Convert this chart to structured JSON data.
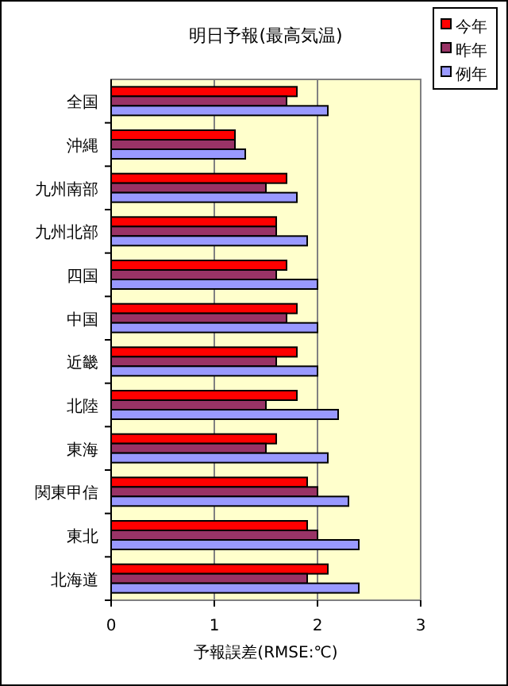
{
  "chart_data": {
    "type": "bar",
    "orientation": "horizontal",
    "title": "明日予報(最高気温)",
    "xlabel": "予報誤差(RMSE:℃)",
    "categories": [
      "全国",
      "沖縄",
      "九州南部",
      "九州北部",
      "四国",
      "中国",
      "近畿",
      "北陸",
      "東海",
      "関東甲信",
      "東北",
      "北海道"
    ],
    "series": [
      {
        "name": "今年",
        "color": "#ff0000",
        "values": [
          1.8,
          1.2,
          1.7,
          1.6,
          1.7,
          1.8,
          1.8,
          1.8,
          1.6,
          1.9,
          1.9,
          2.1
        ]
      },
      {
        "name": "昨年",
        "color": "#993366",
        "values": [
          1.7,
          1.2,
          1.5,
          1.6,
          1.6,
          1.7,
          1.6,
          1.5,
          1.5,
          2.0,
          2.0,
          1.9
        ]
      },
      {
        "name": "例年",
        "color": "#9999ff",
        "values": [
          2.1,
          1.3,
          1.8,
          1.9,
          2.0,
          2.0,
          2.0,
          2.2,
          2.1,
          2.3,
          2.4,
          2.4
        ]
      }
    ],
    "xlim": [
      0,
      3
    ],
    "xticks": [
      0,
      1,
      2,
      3
    ],
    "grid": "x",
    "legend": "top right"
  }
}
